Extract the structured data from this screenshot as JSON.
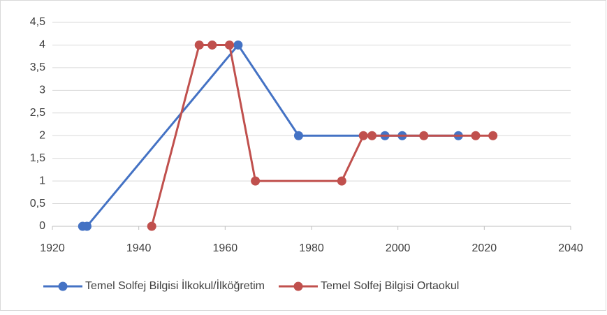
{
  "chart_data": {
    "type": "scatter",
    "xlim": [
      1920,
      2040
    ],
    "xticks": [
      1920,
      1940,
      1960,
      1980,
      2000,
      2020,
      2040
    ],
    "ylim": [
      0,
      4.5
    ],
    "yticks": [
      0,
      {
        "value": 0.5,
        "label": "0,5"
      },
      1,
      {
        "value": 1.5,
        "label": "1,5"
      },
      2,
      {
        "value": 2.5,
        "label": "2,5"
      },
      3,
      {
        "value": 3.5,
        "label": "3,5"
      },
      4,
      {
        "value": 4.5,
        "label": "4,5"
      }
    ],
    "grid": true,
    "legend": "bottom",
    "series": [
      {
        "name": "Temel Solfej Bilgisi İlkokul/İlköğretim",
        "color": "#4472C4",
        "x": [
          1927,
          1928,
          1963,
          1977,
          1997,
          2001,
          2014
        ],
        "values": [
          0,
          0,
          4,
          2,
          2,
          2,
          2
        ]
      },
      {
        "name": "Temel Solfej Bilgisi Ortaokul",
        "color": "#C0504D",
        "x": [
          1943,
          1954,
          1957,
          1961,
          1967,
          1987,
          1992,
          1994,
          2006,
          2018,
          2022
        ],
        "values": [
          0,
          4,
          4,
          4,
          1,
          1,
          2,
          2,
          2,
          2,
          2
        ]
      }
    ]
  }
}
